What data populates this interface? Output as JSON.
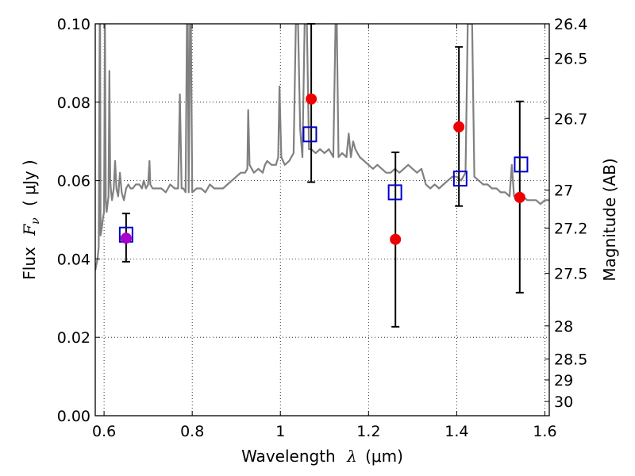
{
  "chart_data": {
    "type": "scatter",
    "xlabel": {
      "text": "Wavelength",
      "symbol": "λ",
      "unit": "(μm)"
    },
    "ylabel": {
      "text": "Flux",
      "symbol": "F",
      "subscript": "ν",
      "unit": "( μJy )"
    },
    "y2label": "Magnitude (AB)",
    "xlim": [
      0.58,
      1.61
    ],
    "ylim": [
      0.0,
      0.1
    ],
    "grid": true,
    "x_ticks": [
      {
        "value": 0.6,
        "label": "0.6"
      },
      {
        "value": 0.8,
        "label": "0.8"
      },
      {
        "value": 1.0,
        "label": "1"
      },
      {
        "value": 1.2,
        "label": "1.2"
      },
      {
        "value": 1.4,
        "label": "1.4"
      },
      {
        "value": 1.6,
        "label": "1.6"
      }
    ],
    "y_ticks": [
      {
        "value": 0.0,
        "label": "0.00"
      },
      {
        "value": 0.02,
        "label": "0.02"
      },
      {
        "value": 0.04,
        "label": "0.04"
      },
      {
        "value": 0.06,
        "label": "0.06"
      },
      {
        "value": 0.08,
        "label": "0.08"
      },
      {
        "value": 0.1,
        "label": "0.10"
      }
    ],
    "mag_ticks": [
      {
        "value": 26.4,
        "label": "26.4"
      },
      {
        "value": 26.5,
        "label": "26.5"
      },
      {
        "value": 26.7,
        "label": "26.7"
      },
      {
        "value": 27.0,
        "label": "27"
      },
      {
        "value": 27.2,
        "label": "27.2"
      },
      {
        "value": 27.5,
        "label": "27.5"
      },
      {
        "value": 28.0,
        "label": "28"
      },
      {
        "value": 28.5,
        "label": "28.5"
      },
      {
        "value": 29.0,
        "label": "29"
      },
      {
        "value": 30.0,
        "label": "30"
      }
    ],
    "series": [
      {
        "kind": "spectrum",
        "color": "#808080",
        "points": [
          [
            0.58,
            0.037
          ],
          [
            0.585,
            0.04
          ],
          [
            0.588,
            0.043
          ],
          [
            0.59,
            0.1
          ],
          [
            0.591,
            0.1
          ],
          [
            0.592,
            0.046
          ],
          [
            0.595,
            0.048
          ],
          [
            0.597,
            0.05
          ],
          [
            0.6,
            0.052
          ],
          [
            0.602,
            0.1
          ],
          [
            0.604,
            0.055
          ],
          [
            0.606,
            0.052
          ],
          [
            0.608,
            0.054
          ],
          [
            0.61,
            0.056
          ],
          [
            0.612,
            0.088
          ],
          [
            0.614,
            0.06
          ],
          [
            0.616,
            0.057
          ],
          [
            0.618,
            0.055
          ],
          [
            0.622,
            0.058
          ],
          [
            0.625,
            0.065
          ],
          [
            0.628,
            0.058
          ],
          [
            0.632,
            0.056
          ],
          [
            0.636,
            0.062
          ],
          [
            0.64,
            0.057
          ],
          [
            0.645,
            0.055
          ],
          [
            0.65,
            0.058
          ],
          [
            0.655,
            0.059
          ],
          [
            0.66,
            0.058
          ],
          [
            0.665,
            0.058
          ],
          [
            0.672,
            0.059
          ],
          [
            0.68,
            0.059
          ],
          [
            0.686,
            0.058
          ],
          [
            0.69,
            0.06
          ],
          [
            0.695,
            0.058
          ],
          [
            0.7,
            0.059
          ],
          [
            0.703,
            0.065
          ],
          [
            0.705,
            0.059
          ],
          [
            0.71,
            0.058
          ],
          [
            0.72,
            0.058
          ],
          [
            0.73,
            0.058
          ],
          [
            0.74,
            0.057
          ],
          [
            0.75,
            0.059
          ],
          [
            0.76,
            0.058
          ],
          [
            0.768,
            0.058
          ],
          [
            0.772,
            0.082
          ],
          [
            0.776,
            0.058
          ],
          [
            0.78,
            0.058
          ],
          [
            0.785,
            0.057
          ],
          [
            0.788,
            0.1
          ],
          [
            0.79,
            0.1
          ],
          [
            0.792,
            0.057
          ],
          [
            0.795,
            0.1
          ],
          [
            0.797,
            0.1
          ],
          [
            0.8,
            0.057
          ],
          [
            0.81,
            0.058
          ],
          [
            0.82,
            0.058
          ],
          [
            0.83,
            0.057
          ],
          [
            0.84,
            0.059
          ],
          [
            0.85,
            0.058
          ],
          [
            0.86,
            0.058
          ],
          [
            0.87,
            0.058
          ],
          [
            0.88,
            0.059
          ],
          [
            0.89,
            0.06
          ],
          [
            0.9,
            0.061
          ],
          [
            0.91,
            0.062
          ],
          [
            0.92,
            0.062
          ],
          [
            0.925,
            0.063
          ],
          [
            0.927,
            0.078
          ],
          [
            0.93,
            0.064
          ],
          [
            0.94,
            0.062
          ],
          [
            0.95,
            0.063
          ],
          [
            0.96,
            0.062
          ],
          [
            0.965,
            0.064
          ],
          [
            0.97,
            0.065
          ],
          [
            0.98,
            0.064
          ],
          [
            0.99,
            0.064
          ],
          [
            0.995,
            0.066
          ],
          [
            0.998,
            0.084
          ],
          [
            1.002,
            0.066
          ],
          [
            1.01,
            0.064
          ],
          [
            1.02,
            0.065
          ],
          [
            1.03,
            0.067
          ],
          [
            1.035,
            0.1
          ],
          [
            1.04,
            0.1
          ],
          [
            1.045,
            0.073
          ],
          [
            1.05,
            0.066
          ],
          [
            1.055,
            0.1
          ],
          [
            1.06,
            0.1
          ],
          [
            1.065,
            0.068
          ],
          [
            1.07,
            0.068
          ],
          [
            1.08,
            0.067
          ],
          [
            1.09,
            0.068
          ],
          [
            1.1,
            0.067
          ],
          [
            1.11,
            0.068
          ],
          [
            1.12,
            0.066
          ],
          [
            1.125,
            0.1
          ],
          [
            1.128,
            0.1
          ],
          [
            1.132,
            0.066
          ],
          [
            1.14,
            0.067
          ],
          [
            1.15,
            0.066
          ],
          [
            1.155,
            0.072
          ],
          [
            1.16,
            0.066
          ],
          [
            1.165,
            0.07
          ],
          [
            1.17,
            0.068
          ],
          [
            1.18,
            0.066
          ],
          [
            1.19,
            0.065
          ],
          [
            1.2,
            0.064
          ],
          [
            1.21,
            0.063
          ],
          [
            1.22,
            0.064
          ],
          [
            1.23,
            0.063
          ],
          [
            1.24,
            0.062
          ],
          [
            1.25,
            0.062
          ],
          [
            1.26,
            0.063
          ],
          [
            1.27,
            0.062
          ],
          [
            1.28,
            0.063
          ],
          [
            1.29,
            0.064
          ],
          [
            1.3,
            0.063
          ],
          [
            1.31,
            0.062
          ],
          [
            1.32,
            0.063
          ],
          [
            1.33,
            0.059
          ],
          [
            1.34,
            0.058
          ],
          [
            1.35,
            0.059
          ],
          [
            1.36,
            0.058
          ],
          [
            1.37,
            0.059
          ],
          [
            1.38,
            0.06
          ],
          [
            1.39,
            0.061
          ],
          [
            1.4,
            0.061
          ],
          [
            1.41,
            0.06
          ],
          [
            1.42,
            0.062
          ],
          [
            1.425,
            0.1
          ],
          [
            1.43,
            0.1
          ],
          [
            1.435,
            0.1
          ],
          [
            1.44,
            0.061
          ],
          [
            1.45,
            0.06
          ],
          [
            1.46,
            0.059
          ],
          [
            1.47,
            0.059
          ],
          [
            1.48,
            0.058
          ],
          [
            1.49,
            0.058
          ],
          [
            1.5,
            0.057
          ],
          [
            1.51,
            0.057
          ],
          [
            1.52,
            0.056
          ],
          [
            1.525,
            0.064
          ],
          [
            1.53,
            0.056
          ],
          [
            1.54,
            0.056
          ],
          [
            1.55,
            0.056
          ],
          [
            1.56,
            0.055
          ],
          [
            1.57,
            0.055
          ],
          [
            1.58,
            0.055
          ],
          [
            1.59,
            0.054
          ],
          [
            1.6,
            0.055
          ],
          [
            1.61,
            0.055
          ]
        ]
      },
      {
        "kind": "model-photometry",
        "marker": "square",
        "color": "#0000cc",
        "points": [
          {
            "x": 0.65,
            "y": 0.0462
          },
          {
            "x": 1.067,
            "y": 0.0718
          },
          {
            "x": 1.26,
            "y": 0.057
          },
          {
            "x": 1.408,
            "y": 0.0605
          },
          {
            "x": 1.546,
            "y": 0.0641
          }
        ]
      },
      {
        "kind": "observed-photometry",
        "marker": "circle",
        "color": "#ee0000",
        "points": [
          {
            "x": 0.65,
            "y": 0.0453,
            "yerr": [
              0.0393,
              0.0516
            ],
            "color": "#aa00cc"
          },
          {
            "x": 1.07,
            "y": 0.0808,
            "yerr": [
              0.0596,
              0.1
            ]
          },
          {
            "x": 1.261,
            "y": 0.045,
            "yerr": [
              0.0227,
              0.0672
            ]
          },
          {
            "x": 1.405,
            "y": 0.0737,
            "yerr": [
              0.0535,
              0.0941
            ]
          },
          {
            "x": 1.543,
            "y": 0.0557,
            "yerr": [
              0.0314,
              0.0802
            ]
          }
        ]
      }
    ]
  }
}
